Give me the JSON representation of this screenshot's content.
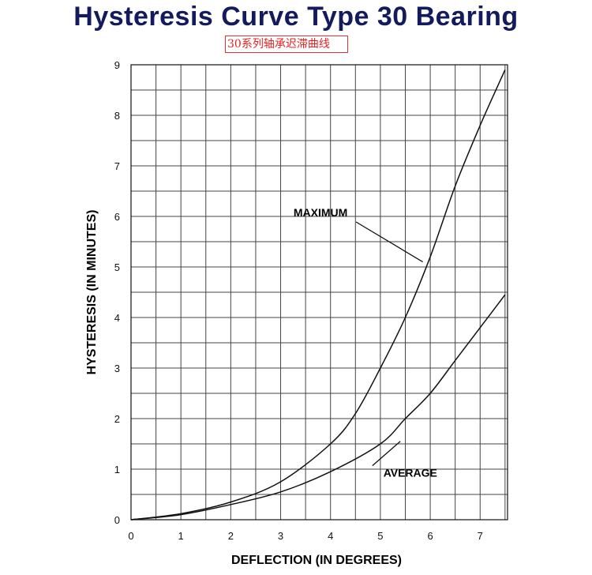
{
  "title": "Hysteresis Curve Type 30 Bearing",
  "subtitle": "30系列轴承迟滞曲线",
  "chart_data": {
    "type": "line",
    "title": "Hysteresis Curve Type 30 Bearing",
    "xlabel": "DEFLECTION (IN DEGREES)",
    "ylabel": "HYSTERESIS (IN MINUTES)",
    "xlim": [
      0,
      7.55
    ],
    "ylim": [
      0,
      9
    ],
    "xticks": [
      "0",
      "1",
      "2",
      "3",
      "4",
      "5",
      "6",
      "7"
    ],
    "yticks": [
      "0",
      "1",
      "2",
      "3",
      "4",
      "5",
      "6",
      "7",
      "8",
      "9"
    ],
    "grid": true,
    "grid_step": 0.5,
    "series": [
      {
        "name": "MAXIMUM",
        "x": [
          0,
          1,
          2,
          3,
          4,
          4.5,
          5,
          5.5,
          6,
          6.5,
          7,
          7.5
        ],
        "y": [
          0,
          0.12,
          0.35,
          0.75,
          1.5,
          2.1,
          3.0,
          4.0,
          5.2,
          6.6,
          7.8,
          8.9
        ]
      },
      {
        "name": "AVERAGE",
        "x": [
          0,
          1,
          2,
          3,
          4,
          5,
          5.5,
          6,
          6.5,
          7,
          7.5
        ],
        "y": [
          0,
          0.1,
          0.3,
          0.55,
          0.95,
          1.5,
          2.0,
          2.5,
          3.15,
          3.8,
          4.45
        ]
      }
    ],
    "annotations": [
      {
        "text": "MAXIMUM",
        "x": 3.8,
        "y": 6.0,
        "points_to": [
          5.85,
          5.1
        ]
      },
      {
        "text": "AVERAGE",
        "x": 5.6,
        "y": 0.85,
        "points_to": [
          5.4,
          1.55
        ]
      }
    ]
  }
}
